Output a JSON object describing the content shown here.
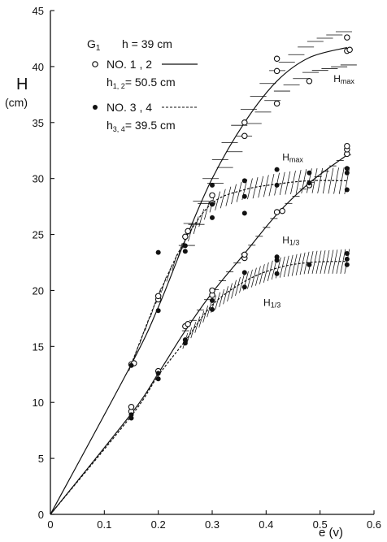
{
  "chart_data": {
    "type": "scatter",
    "title": "",
    "xlabel": "e (v)",
    "ylabel": "H",
    "ylabel_unit": "(cm)",
    "xlim": [
      0,
      0.6
    ],
    "ylim": [
      0,
      45
    ],
    "xticks": [
      0,
      0.1,
      0.2,
      0.3,
      0.4,
      0.5,
      0.6
    ],
    "yticks": [
      0,
      5,
      10,
      15,
      20,
      25,
      30,
      35,
      40,
      45
    ],
    "grid": false,
    "legend": {
      "header_g": "G",
      "header_g_sub": "1",
      "header_h": "h = 39 cm",
      "entry1_label": "NO. 1 , 2",
      "entry1_sublabel_pre": "h",
      "entry1_sublabel_sub": "1, 2",
      "entry1_sublabel_post": "= 50.5 cm",
      "entry2_label": "NO. 3 , 4",
      "entry2_sublabel_pre": "h",
      "entry2_sublabel_sub": "3, 4",
      "entry2_sublabel_post": "= 39.5 cm"
    },
    "annotations": [
      {
        "text": "Hmax",
        "x": 0.525,
        "y": 38.6,
        "main": "H",
        "sub": "max"
      },
      {
        "text": "Hmax",
        "x": 0.43,
        "y": 31.6,
        "main": "H",
        "sub": "max"
      },
      {
        "text": "H1/3",
        "x": 0.43,
        "y": 24.2,
        "main": "H",
        "sub": "1/3"
      },
      {
        "text": "H1/3",
        "x": 0.395,
        "y": 18.6,
        "main": "H",
        "sub": "1/3"
      }
    ],
    "series": [
      {
        "marker": "open",
        "values": [
          {
            "x": 0.15,
            "y": 13.4
          },
          {
            "x": 0.155,
            "y": 13.5
          },
          {
            "x": 0.2,
            "y": 19.2
          },
          {
            "x": 0.2,
            "y": 19.5
          },
          {
            "x": 0.25,
            "y": 24.8
          },
          {
            "x": 0.255,
            "y": 25.3
          },
          {
            "x": 0.3,
            "y": 27.8
          },
          {
            "x": 0.3,
            "y": 28.5
          },
          {
            "x": 0.36,
            "y": 33.8
          },
          {
            "x": 0.36,
            "y": 35.0
          },
          {
            "x": 0.42,
            "y": 36.7
          },
          {
            "x": 0.42,
            "y": 39.6
          },
          {
            "x": 0.42,
            "y": 40.7
          },
          {
            "x": 0.48,
            "y": 38.7
          },
          {
            "x": 0.55,
            "y": 41.4
          },
          {
            "x": 0.55,
            "y": 42.6
          },
          {
            "x": 0.555,
            "y": 41.5
          },
          {
            "x": 0.15,
            "y": 9.2
          },
          {
            "x": 0.15,
            "y": 9.6
          },
          {
            "x": 0.2,
            "y": 12.8
          },
          {
            "x": 0.25,
            "y": 16.8
          },
          {
            "x": 0.255,
            "y": 17.0
          },
          {
            "x": 0.3,
            "y": 19.6
          },
          {
            "x": 0.3,
            "y": 20.0
          },
          {
            "x": 0.36,
            "y": 22.9
          },
          {
            "x": 0.36,
            "y": 23.2
          },
          {
            "x": 0.42,
            "y": 27.0
          },
          {
            "x": 0.43,
            "y": 27.1
          },
          {
            "x": 0.48,
            "y": 29.4
          },
          {
            "x": 0.55,
            "y": 32.2
          },
          {
            "x": 0.55,
            "y": 32.6
          },
          {
            "x": 0.55,
            "y": 32.9
          }
        ]
      },
      {
        "marker": "filled",
        "values": [
          {
            "x": 0.15,
            "y": 13.3
          },
          {
            "x": 0.2,
            "y": 18.2
          },
          {
            "x": 0.2,
            "y": 23.4
          },
          {
            "x": 0.25,
            "y": 23.5
          },
          {
            "x": 0.25,
            "y": 24.0
          },
          {
            "x": 0.3,
            "y": 26.5
          },
          {
            "x": 0.3,
            "y": 27.7
          },
          {
            "x": 0.3,
            "y": 29.4
          },
          {
            "x": 0.36,
            "y": 26.9
          },
          {
            "x": 0.36,
            "y": 28.4
          },
          {
            "x": 0.36,
            "y": 29.8
          },
          {
            "x": 0.42,
            "y": 29.4
          },
          {
            "x": 0.42,
            "y": 30.8
          },
          {
            "x": 0.48,
            "y": 29.6
          },
          {
            "x": 0.48,
            "y": 30.5
          },
          {
            "x": 0.55,
            "y": 29.0
          },
          {
            "x": 0.55,
            "y": 30.5
          },
          {
            "x": 0.55,
            "y": 30.9
          },
          {
            "x": 0.15,
            "y": 8.6
          },
          {
            "x": 0.15,
            "y": 8.9
          },
          {
            "x": 0.2,
            "y": 12.1
          },
          {
            "x": 0.2,
            "y": 12.6
          },
          {
            "x": 0.25,
            "y": 15.3
          },
          {
            "x": 0.25,
            "y": 15.6
          },
          {
            "x": 0.3,
            "y": 18.3
          },
          {
            "x": 0.3,
            "y": 19.1
          },
          {
            "x": 0.36,
            "y": 20.3
          },
          {
            "x": 0.36,
            "y": 21.6
          },
          {
            "x": 0.42,
            "y": 21.5
          },
          {
            "x": 0.42,
            "y": 22.7
          },
          {
            "x": 0.42,
            "y": 23.0
          },
          {
            "x": 0.48,
            "y": 22.3
          },
          {
            "x": 0.55,
            "y": 22.3
          },
          {
            "x": 0.55,
            "y": 22.8
          },
          {
            "x": 0.55,
            "y": 23.3
          }
        ]
      }
    ],
    "curves": [
      {
        "style": "solid",
        "values": [
          {
            "x": 0,
            "y": 0
          },
          {
            "x": 0.15,
            "y": 13.4
          },
          {
            "x": 0.2,
            "y": 18.5
          },
          {
            "x": 0.25,
            "y": 24.5
          },
          {
            "x": 0.3,
            "y": 30.0
          },
          {
            "x": 0.36,
            "y": 35.0
          },
          {
            "x": 0.42,
            "y": 38.7
          },
          {
            "x": 0.48,
            "y": 40.8
          },
          {
            "x": 0.55,
            "y": 41.7
          }
        ]
      },
      {
        "style": "dashed",
        "values": [
          {
            "x": 0.15,
            "y": 13.4
          },
          {
            "x": 0.2,
            "y": 19.5
          },
          {
            "x": 0.25,
            "y": 24.5
          },
          {
            "x": 0.3,
            "y": 27.8
          },
          {
            "x": 0.36,
            "y": 29.0
          },
          {
            "x": 0.42,
            "y": 29.5
          },
          {
            "x": 0.48,
            "y": 29.8
          },
          {
            "x": 0.55,
            "y": 29.8
          }
        ]
      },
      {
        "style": "solid",
        "values": [
          {
            "x": 0,
            "y": 0
          },
          {
            "x": 0.15,
            "y": 9.0
          },
          {
            "x": 0.2,
            "y": 12.6
          },
          {
            "x": 0.25,
            "y": 16.4
          },
          {
            "x": 0.3,
            "y": 19.8
          },
          {
            "x": 0.36,
            "y": 23.3
          },
          {
            "x": 0.42,
            "y": 26.8
          },
          {
            "x": 0.48,
            "y": 29.6
          },
          {
            "x": 0.55,
            "y": 32.1
          }
        ]
      },
      {
        "style": "dashed",
        "values": [
          {
            "x": 0,
            "y": 0
          },
          {
            "x": 0.15,
            "y": 8.8
          },
          {
            "x": 0.2,
            "y": 12.4
          },
          {
            "x": 0.25,
            "y": 15.5
          },
          {
            "x": 0.3,
            "y": 18.7
          },
          {
            "x": 0.36,
            "y": 20.8
          },
          {
            "x": 0.42,
            "y": 22.0
          },
          {
            "x": 0.48,
            "y": 22.5
          },
          {
            "x": 0.55,
            "y": 22.6
          }
        ]
      }
    ],
    "scatter_bands": [
      {
        "style": "horizontal-hatch",
        "x_range": [
          0.25,
          0.55
        ],
        "curve": 0,
        "half_width_start": 0.8,
        "half_width_end": 2.6
      },
      {
        "style": "diagonal-hatch",
        "x_range": [
          0.15,
          0.55
        ],
        "curve": 1,
        "half_width_start": 0.6,
        "half_width_end": 1.2
      },
      {
        "style": "tick-hatch",
        "x_range": [
          0.25,
          0.55
        ],
        "curve": 2,
        "half_width_start": 0.6,
        "half_width_end": 0.8
      },
      {
        "style": "diagonal-hatch",
        "x_range": [
          0.25,
          0.55
        ],
        "curve": 3,
        "half_width_start": 0.7,
        "half_width_end": 1.1
      }
    ]
  }
}
